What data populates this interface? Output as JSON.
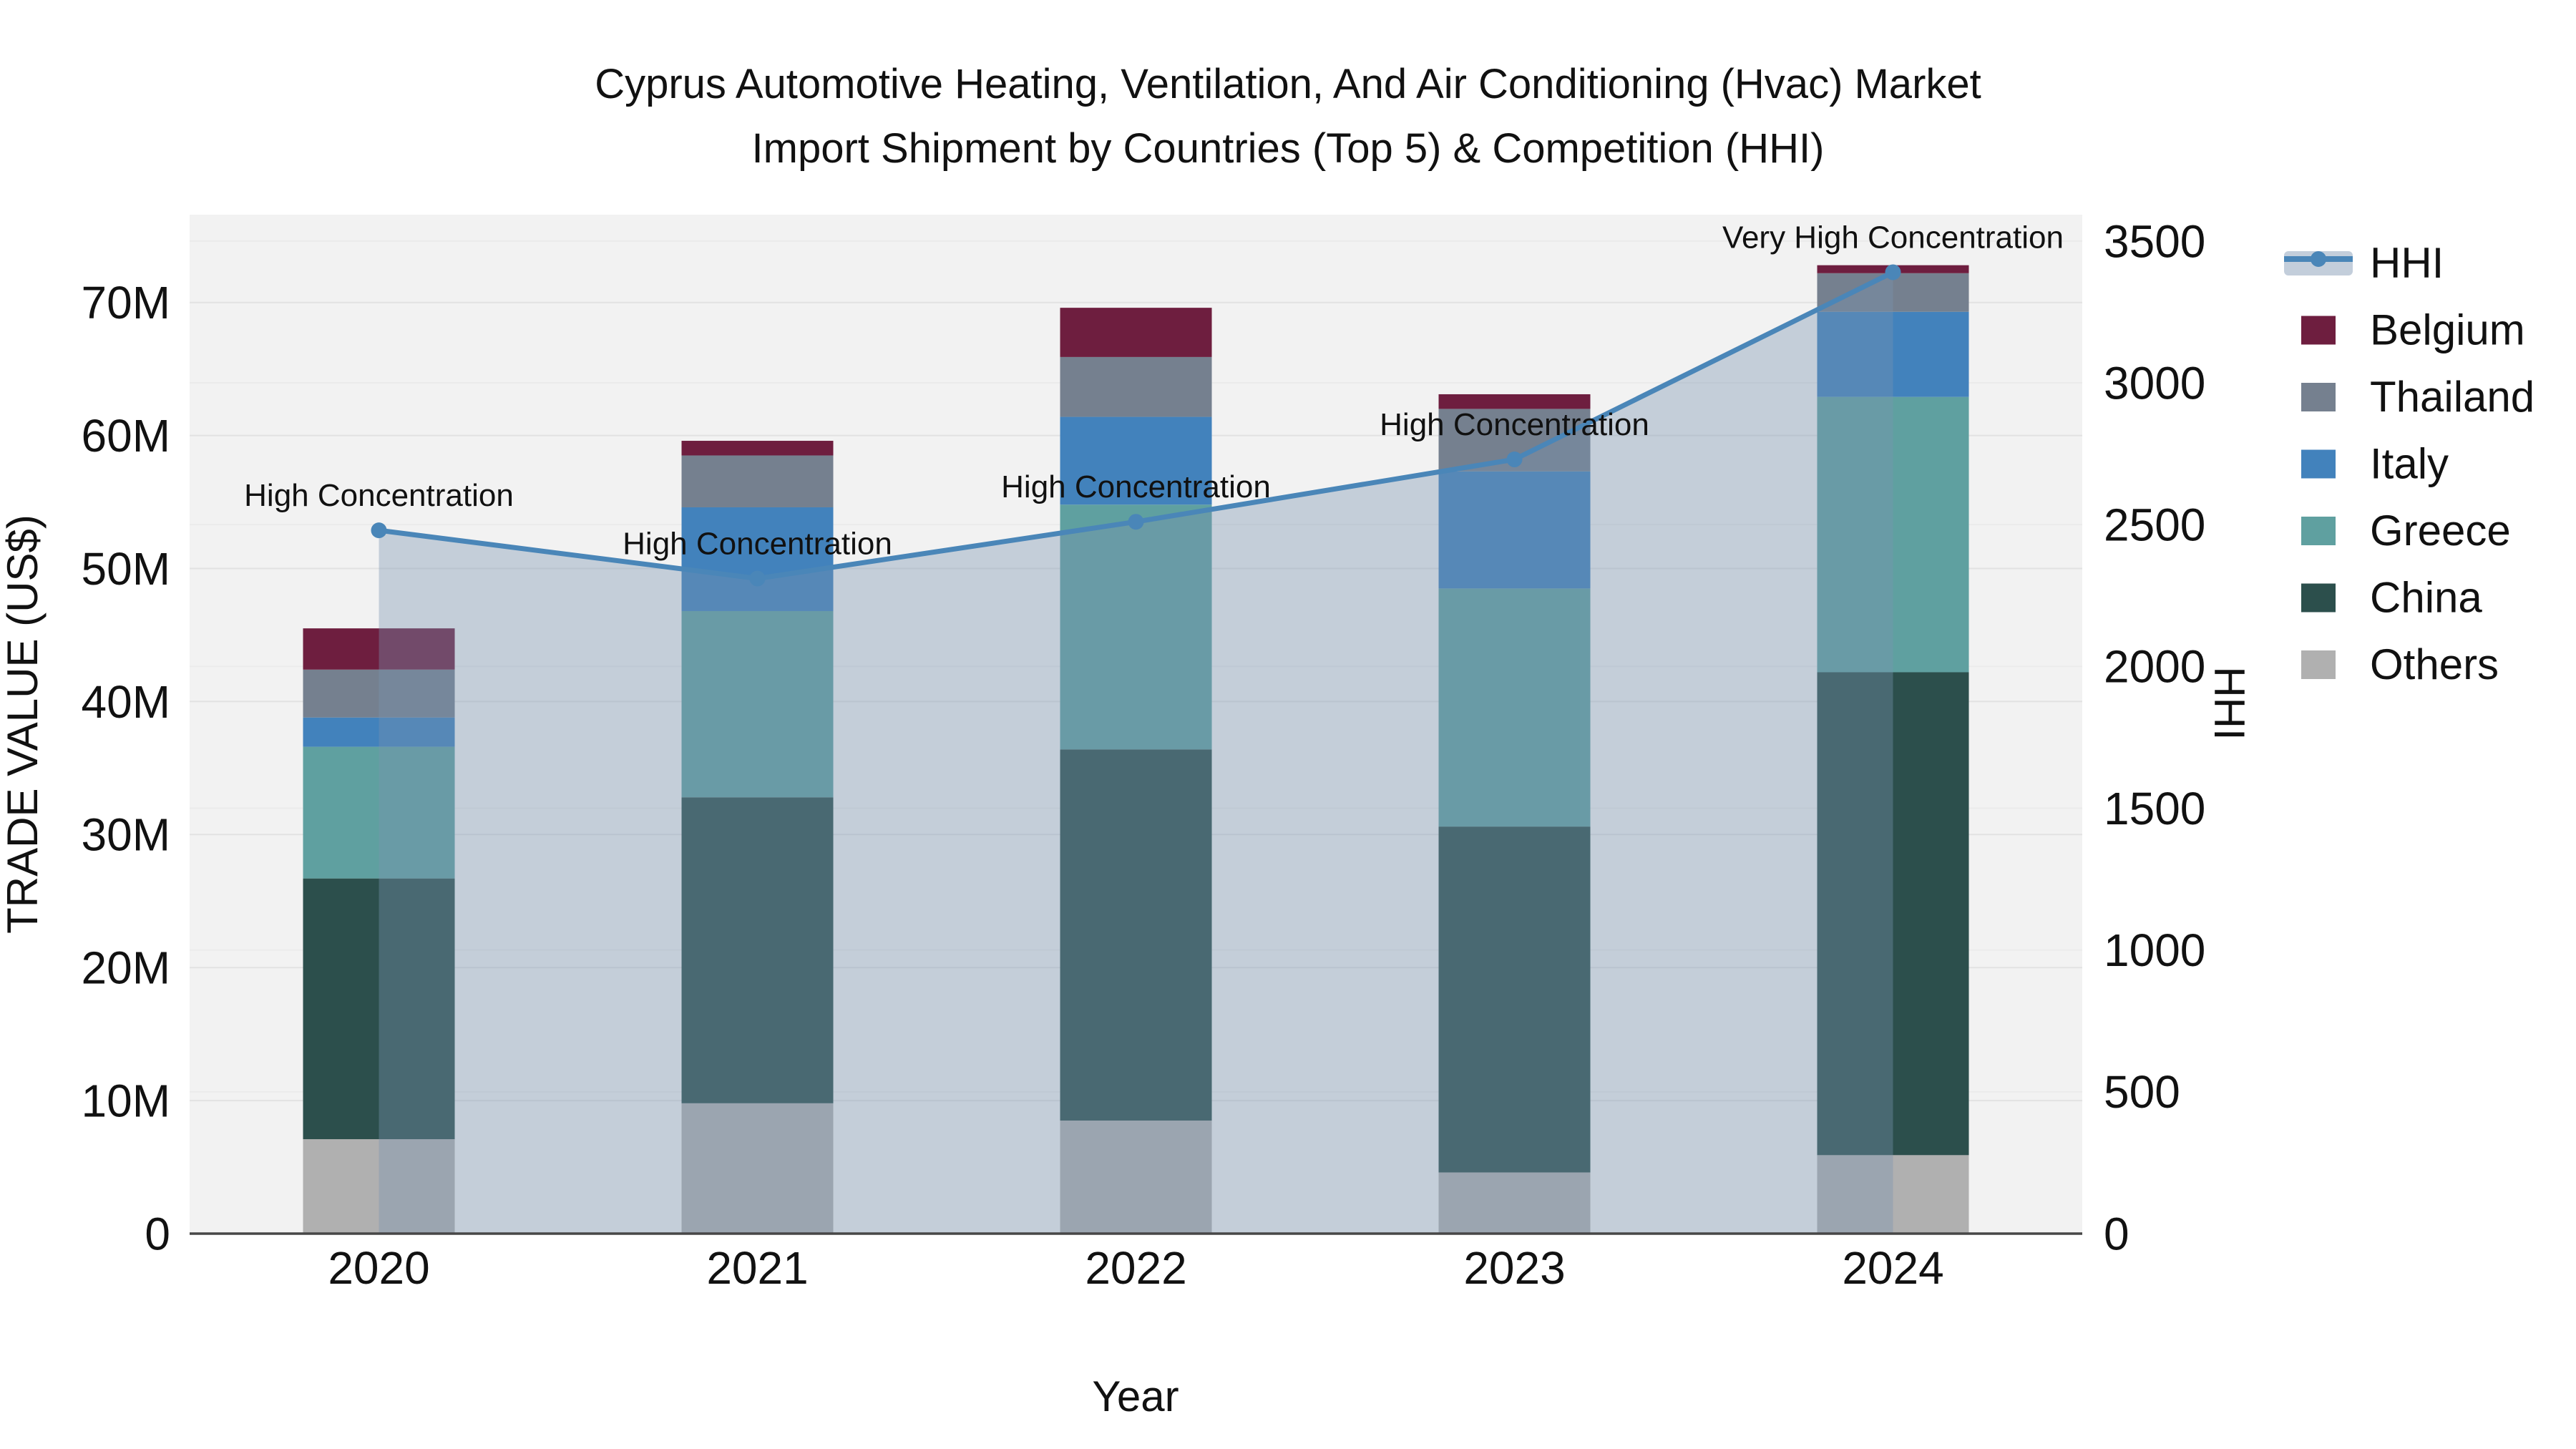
{
  "title": {
    "line1": "Cyprus Automotive Heating, Ventilation, And Air Conditioning (Hvac) Market",
    "line2": "Import Shipment by Countries (Top 5) & Competition (HHI)"
  },
  "axes": {
    "x": {
      "title": "Year",
      "ticks": [
        "2020",
        "2021",
        "2022",
        "2023",
        "2024"
      ]
    },
    "y_left": {
      "title": "TRADE VALUE (US$)",
      "ticks": [
        {
          "v": 0,
          "label": "0"
        },
        {
          "v": 10,
          "label": "10M"
        },
        {
          "v": 20,
          "label": "20M"
        },
        {
          "v": 30,
          "label": "30M"
        },
        {
          "v": 40,
          "label": "40M"
        },
        {
          "v": 50,
          "label": "50M"
        },
        {
          "v": 60,
          "label": "60M"
        },
        {
          "v": 70,
          "label": "70M"
        }
      ]
    },
    "y_right": {
      "title": "HHI",
      "ticks": [
        {
          "v": 0,
          "label": "0"
        },
        {
          "v": 500,
          "label": "500"
        },
        {
          "v": 1000,
          "label": "1000"
        },
        {
          "v": 1500,
          "label": "1500"
        },
        {
          "v": 2000,
          "label": "2000"
        },
        {
          "v": 2500,
          "label": "2500"
        },
        {
          "v": 3000,
          "label": "3000"
        },
        {
          "v": 3500,
          "label": "3500"
        }
      ]
    }
  },
  "legend": {
    "items": [
      {
        "label": "HHI",
        "type": "line",
        "color": "#4A86B8"
      },
      {
        "label": "Belgium",
        "type": "swatch",
        "color": "#6E1E3F"
      },
      {
        "label": "Thailand",
        "type": "swatch",
        "color": "#75808F"
      },
      {
        "label": "Italy",
        "type": "swatch",
        "color": "#4282BC"
      },
      {
        "label": "Greece",
        "type": "swatch",
        "color": "#5FA0A0"
      },
      {
        "label": "China",
        "type": "swatch",
        "color": "#2C4F4C"
      },
      {
        "label": "Others",
        "type": "swatch",
        "color": "#B0B0B0"
      }
    ]
  },
  "chart_data": {
    "type": "bar+line",
    "bar_value_unit": "million US$ (trade value)",
    "categories": [
      "2020",
      "2021",
      "2022",
      "2023",
      "2024"
    ],
    "series": [
      {
        "name": "Others",
        "color": "#B0B0B0",
        "values": [
          7.1,
          9.8,
          8.5,
          4.6,
          5.9
        ]
      },
      {
        "name": "China",
        "color": "#2C4F4C",
        "values": [
          19.6,
          23.0,
          27.9,
          26.0,
          36.3
        ]
      },
      {
        "name": "Greece",
        "color": "#5FA0A0",
        "values": [
          9.9,
          14.0,
          18.4,
          17.9,
          20.7
        ]
      },
      {
        "name": "Italy",
        "color": "#4282BC",
        "values": [
          2.2,
          7.8,
          6.6,
          8.8,
          6.4
        ]
      },
      {
        "name": "Thailand",
        "color": "#75808F",
        "values": [
          3.6,
          3.9,
          4.5,
          4.7,
          2.9
        ]
      },
      {
        "name": "Belgium",
        "color": "#6E1E3F",
        "values": [
          3.1,
          1.1,
          3.7,
          1.1,
          0.6
        ]
      }
    ],
    "bar_totals": [
      45.5,
      59.6,
      69.6,
      63.1,
      72.8
    ],
    "line_series": {
      "name": "HHI",
      "color": "#4A86B8",
      "axis": "right",
      "values": [
        2480,
        2310,
        2510,
        2730,
        3390
      ]
    },
    "annotations": [
      {
        "category": "2020",
        "text": "High Concentration"
      },
      {
        "category": "2021",
        "text": "High Concentration"
      },
      {
        "category": "2022",
        "text": "High Concentration"
      },
      {
        "category": "2023",
        "text": "High Concentration"
      },
      {
        "category": "2024",
        "text": "Very High Concentration"
      }
    ],
    "xlabel": "Year",
    "ylabel_left": "TRADE VALUE (US$)",
    "ylabel_right": "HHI",
    "y_left_range": [
      0,
      76.6
    ],
    "y_right_range": [
      0,
      3593
    ],
    "grid": true,
    "legend_position": "right",
    "stack_order_bottom_to_top": [
      "Others",
      "China",
      "Greece",
      "Italy",
      "Thailand",
      "Belgium"
    ]
  },
  "colors": {
    "area_fill": "rgba(122,146,176,0.38)",
    "plot_bg": "#F2F2F2",
    "paper_bg": "#FFFFFF",
    "grid_left": "#E2E2E2",
    "grid_right": "#EBEBEB",
    "axis_line": "#474747",
    "text": "#111111"
  }
}
